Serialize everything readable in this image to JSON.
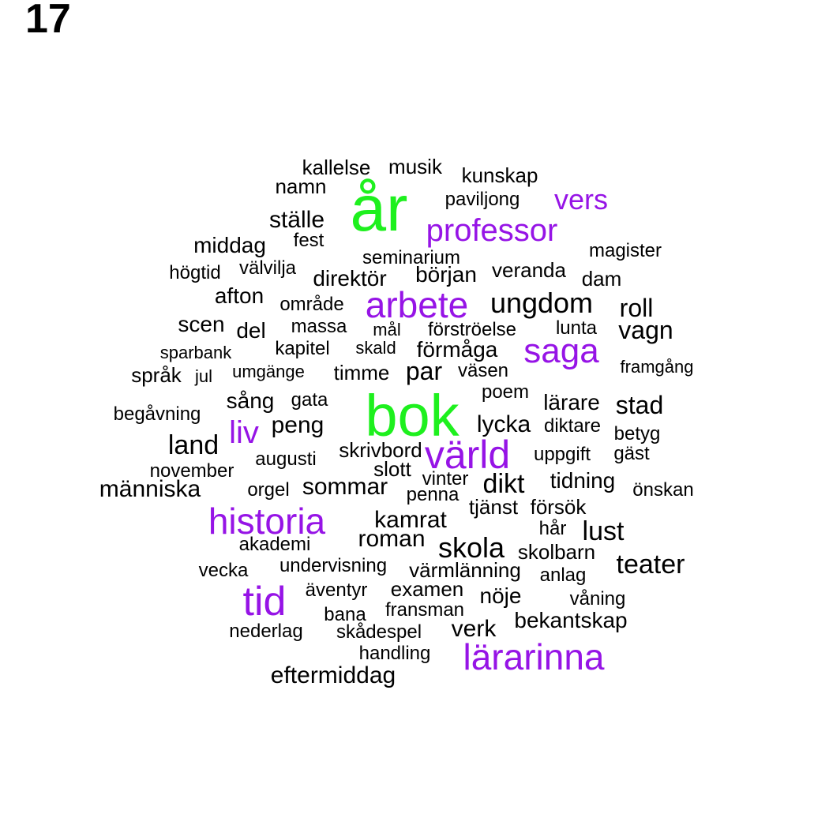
{
  "panel_label": "17",
  "palette": {
    "top": "#1ef01e",
    "high": "#9614e6",
    "normal": "#000000"
  },
  "words": [
    {
      "text": "år",
      "tier": "top"
    },
    {
      "text": "bok",
      "tier": "top"
    },
    {
      "text": "vers",
      "tier": "high"
    },
    {
      "text": "professor",
      "tier": "high"
    },
    {
      "text": "arbete",
      "tier": "high"
    },
    {
      "text": "saga",
      "tier": "high"
    },
    {
      "text": "liv",
      "tier": "high"
    },
    {
      "text": "värld",
      "tier": "high"
    },
    {
      "text": "historia",
      "tier": "high"
    },
    {
      "text": "tid",
      "tier": "high"
    },
    {
      "text": "lärarinna",
      "tier": "high"
    },
    {
      "text": "kallelse",
      "tier": "normal"
    },
    {
      "text": "musik",
      "tier": "normal"
    },
    {
      "text": "kunskap",
      "tier": "normal"
    },
    {
      "text": "namn",
      "tier": "normal"
    },
    {
      "text": "paviljong",
      "tier": "normal"
    },
    {
      "text": "ställe",
      "tier": "normal"
    },
    {
      "text": "middag",
      "tier": "normal"
    },
    {
      "text": "fest",
      "tier": "normal"
    },
    {
      "text": "magister",
      "tier": "normal"
    },
    {
      "text": "seminarium",
      "tier": "normal"
    },
    {
      "text": "högtid",
      "tier": "normal"
    },
    {
      "text": "välvilja",
      "tier": "normal"
    },
    {
      "text": "direktör",
      "tier": "normal"
    },
    {
      "text": "början",
      "tier": "normal"
    },
    {
      "text": "veranda",
      "tier": "normal"
    },
    {
      "text": "dam",
      "tier": "normal"
    },
    {
      "text": "afton",
      "tier": "normal"
    },
    {
      "text": "område",
      "tier": "normal"
    },
    {
      "text": "ungdom",
      "tier": "normal"
    },
    {
      "text": "roll",
      "tier": "normal"
    },
    {
      "text": "scen",
      "tier": "normal"
    },
    {
      "text": "del",
      "tier": "normal"
    },
    {
      "text": "massa",
      "tier": "normal"
    },
    {
      "text": "mål",
      "tier": "normal"
    },
    {
      "text": "förströelse",
      "tier": "normal"
    },
    {
      "text": "lunta",
      "tier": "normal"
    },
    {
      "text": "vagn",
      "tier": "normal"
    },
    {
      "text": "sparbank",
      "tier": "normal"
    },
    {
      "text": "kapitel",
      "tier": "normal"
    },
    {
      "text": "skald",
      "tier": "normal"
    },
    {
      "text": "förmåga",
      "tier": "normal"
    },
    {
      "text": "språk",
      "tier": "normal"
    },
    {
      "text": "jul",
      "tier": "normal"
    },
    {
      "text": "umgänge",
      "tier": "normal"
    },
    {
      "text": "timme",
      "tier": "normal"
    },
    {
      "text": "par",
      "tier": "normal"
    },
    {
      "text": "väsen",
      "tier": "normal"
    },
    {
      "text": "framgång",
      "tier": "normal"
    },
    {
      "text": "poem",
      "tier": "normal"
    },
    {
      "text": "sång",
      "tier": "normal"
    },
    {
      "text": "gata",
      "tier": "normal"
    },
    {
      "text": "lärare",
      "tier": "normal"
    },
    {
      "text": "stad",
      "tier": "normal"
    },
    {
      "text": "begåvning",
      "tier": "normal"
    },
    {
      "text": "peng",
      "tier": "normal"
    },
    {
      "text": "lycka",
      "tier": "normal"
    },
    {
      "text": "diktare",
      "tier": "normal"
    },
    {
      "text": "betyg",
      "tier": "normal"
    },
    {
      "text": "land",
      "tier": "normal"
    },
    {
      "text": "skrivbord",
      "tier": "normal"
    },
    {
      "text": "uppgift",
      "tier": "normal"
    },
    {
      "text": "gäst",
      "tier": "normal"
    },
    {
      "text": "augusti",
      "tier": "normal"
    },
    {
      "text": "november",
      "tier": "normal"
    },
    {
      "text": "slott",
      "tier": "normal"
    },
    {
      "text": "vinter",
      "tier": "normal"
    },
    {
      "text": "dikt",
      "tier": "normal"
    },
    {
      "text": "tidning",
      "tier": "normal"
    },
    {
      "text": "människa",
      "tier": "normal"
    },
    {
      "text": "orgel",
      "tier": "normal"
    },
    {
      "text": "sommar",
      "tier": "normal"
    },
    {
      "text": "penna",
      "tier": "normal"
    },
    {
      "text": "önskan",
      "tier": "normal"
    },
    {
      "text": "tjänst",
      "tier": "normal"
    },
    {
      "text": "försök",
      "tier": "normal"
    },
    {
      "text": "kamrat",
      "tier": "normal"
    },
    {
      "text": "hår",
      "tier": "normal"
    },
    {
      "text": "lust",
      "tier": "normal"
    },
    {
      "text": "roman",
      "tier": "normal"
    },
    {
      "text": "akademi",
      "tier": "normal"
    },
    {
      "text": "skola",
      "tier": "normal"
    },
    {
      "text": "skolbarn",
      "tier": "normal"
    },
    {
      "text": "teater",
      "tier": "normal"
    },
    {
      "text": "vecka",
      "tier": "normal"
    },
    {
      "text": "undervisning",
      "tier": "normal"
    },
    {
      "text": "värmlänning",
      "tier": "normal"
    },
    {
      "text": "anlag",
      "tier": "normal"
    },
    {
      "text": "äventyr",
      "tier": "normal"
    },
    {
      "text": "examen",
      "tier": "normal"
    },
    {
      "text": "nöje",
      "tier": "normal"
    },
    {
      "text": "våning",
      "tier": "normal"
    },
    {
      "text": "bana",
      "tier": "normal"
    },
    {
      "text": "fransman",
      "tier": "normal"
    },
    {
      "text": "bekantskap",
      "tier": "normal"
    },
    {
      "text": "nederlag",
      "tier": "normal"
    },
    {
      "text": "skådespel",
      "tier": "normal"
    },
    {
      "text": "verk",
      "tier": "normal"
    },
    {
      "text": "handling",
      "tier": "normal"
    },
    {
      "text": "eftermiddag",
      "tier": "normal"
    }
  ]
}
